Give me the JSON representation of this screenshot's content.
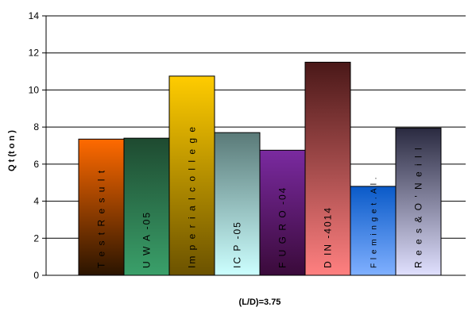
{
  "chart_data": {
    "type": "bar",
    "title": "",
    "xlabel": "(L/D)=3.75",
    "ylabel": "Q t (t o n )",
    "ylim": [
      0,
      14
    ],
    "yticks": [
      0,
      2,
      4,
      6,
      8,
      10,
      12,
      14
    ],
    "grid": true,
    "legend": "none",
    "categories": [
      "T e s t R e s u l t",
      "U W A -05",
      "Im p e r i a l c o l l e g e",
      "IC P -05",
      "F U G R O -04",
      "D IN -4014",
      "F l e m i n g e t . A l .",
      "R e e s & O ' N e i l l"
    ],
    "values": [
      7.35,
      7.4,
      10.75,
      7.7,
      6.75,
      11.5,
      4.8,
      7.95
    ],
    "colors": [
      [
        "#ff6a00",
        "#2a1400"
      ],
      [
        "#1e4a30",
        "#3aa06a"
      ],
      [
        "#ffcc00",
        "#6b5200"
      ],
      [
        "#5a7a78",
        "#ccffff"
      ],
      [
        "#7a2aa0",
        "#3a0a3a"
      ],
      [
        "#4a1818",
        "#ff8080"
      ],
      [
        "#0a5ac8",
        "#80b0ff"
      ],
      [
        "#2a2a40",
        "#e0e0ff"
      ]
    ]
  }
}
